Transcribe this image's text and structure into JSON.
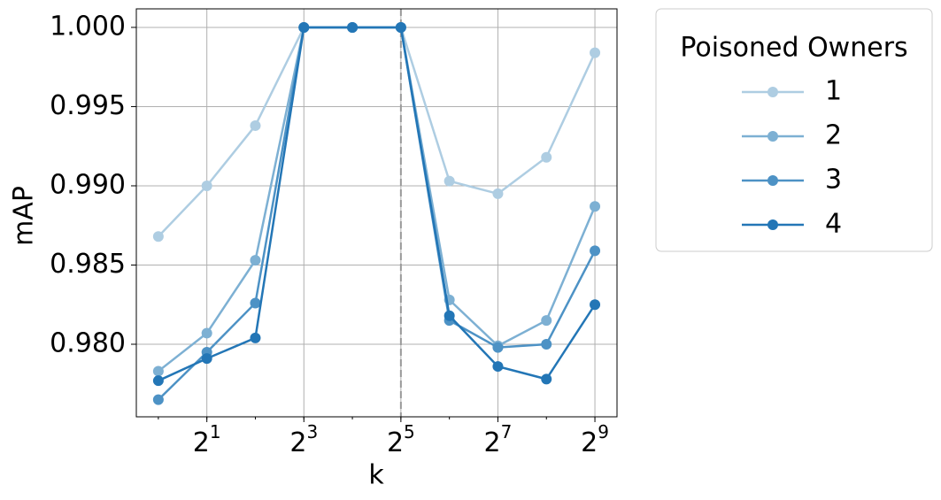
{
  "chart_data": {
    "type": "line",
    "x_label": "k",
    "y_label": "mAP",
    "x": [
      1,
      2,
      4,
      8,
      16,
      32,
      64,
      128,
      256,
      512
    ],
    "xscale": "log2",
    "xlim": [
      0.73,
      702
    ],
    "ylim": [
      0.97542,
      1.00117
    ],
    "xticks": [
      {
        "value": 2,
        "label": "2^1"
      },
      {
        "value": 8,
        "label": "2^3"
      },
      {
        "value": 32,
        "label": "2^5"
      },
      {
        "value": 128,
        "label": "2^7"
      },
      {
        "value": 512,
        "label": "2^9"
      }
    ],
    "yticks": [
      {
        "value": 0.98,
        "label": "0.980"
      },
      {
        "value": 0.985,
        "label": "0.985"
      },
      {
        "value": 0.99,
        "label": "0.990"
      },
      {
        "value": 0.995,
        "label": "0.995"
      },
      {
        "value": 1.0,
        "label": "1.000"
      }
    ],
    "grid": true,
    "vline_x": 32,
    "vline_color": "#999999",
    "legend_title": "Poisoned Owners",
    "legend_position": "outside-right",
    "series": [
      {
        "name": "1",
        "color": "#aecde2",
        "values": [
          0.9868,
          0.99,
          0.9938,
          1.0,
          1.0,
          1.0,
          0.9903,
          0.9895,
          0.9918,
          0.9984
        ]
      },
      {
        "name": "2",
        "color": "#7db0d3",
        "values": [
          0.9783,
          0.9807,
          0.9853,
          1.0,
          1.0,
          1.0,
          0.9828,
          0.9799,
          0.9815,
          0.9887
        ]
      },
      {
        "name": "3",
        "color": "#4d92c5",
        "values": [
          0.9765,
          0.9795,
          0.9826,
          1.0,
          1.0,
          1.0,
          0.9815,
          0.9798,
          0.98,
          0.9859
        ]
      },
      {
        "name": "4",
        "color": "#2376b6",
        "values": [
          0.9777,
          0.9791,
          0.9804,
          1.0,
          1.0,
          1.0,
          0.9818,
          0.9786,
          0.9778,
          0.9825
        ]
      }
    ]
  }
}
